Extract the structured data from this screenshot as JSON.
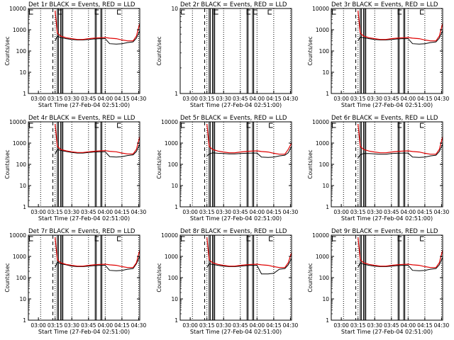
{
  "figure": {
    "xlabel": "Start Time (27-Feb-04 02:51:00)",
    "ylabel": "Counts/sec",
    "x_tick_labels": [
      "03:00",
      "03:15",
      "03:30",
      "03:45",
      "04:00",
      "04:15",
      "04:30"
    ],
    "y_tick_labels": [
      "1",
      "10",
      "100",
      "1000",
      "10000"
    ]
  },
  "colors": {
    "events": "#000000",
    "lld": "#e00000",
    "axes": "#000000",
    "background": "#ffffff"
  },
  "chart_data": [
    {
      "type": "line",
      "title": "Det 1r BLACK = Events, RED = LLD",
      "xlim": [
        "02:51",
        "04:31"
      ],
      "ylim": [
        1,
        10000
      ],
      "y_scale": "log",
      "x": [
        "03:15",
        "03:17",
        "03:20",
        "03:25",
        "03:30",
        "03:35",
        "03:40",
        "03:45",
        "03:50",
        "03:55",
        "04:00",
        "04:04",
        "04:10",
        "04:15",
        "04:20",
        "04:25",
        "04:28",
        "04:31"
      ],
      "series": [
        {
          "name": "Events",
          "color": "#000000",
          "values": [
            300,
            500,
            430,
            380,
            350,
            330,
            330,
            350,
            370,
            380,
            380,
            220,
            210,
            220,
            250,
            270,
            400,
            900
          ]
        },
        {
          "name": "LLD",
          "color": "#e00000",
          "values": [
            8000,
            700,
            500,
            420,
            380,
            350,
            350,
            380,
            400,
            420,
            430,
            400,
            380,
            330,
            300,
            300,
            500,
            2000
          ]
        }
      ],
      "vlines_dashed": [
        "03:13"
      ],
      "vlines_dotted": [
        "03:02",
        "03:15",
        "03:30",
        "03:45",
        "04:00",
        "04:15",
        "04:30"
      ],
      "vlines_solid": [
        "03:17",
        "03:18",
        "03:20",
        "03:21",
        "03:22",
        "03:51",
        "03:52",
        "03:56",
        "03:57"
      ],
      "markers": [
        "02:52",
        "03:18",
        "03:51",
        "04:11"
      ]
    },
    {
      "type": "line",
      "title": "Det 2r BLACK = Events, RED = LLD",
      "xlim": [
        "02:51",
        "04:31"
      ],
      "ylim": [
        1,
        10
      ],
      "y_scale": "log",
      "x": [],
      "series": [],
      "vlines_dashed": [
        "03:13"
      ],
      "vlines_dotted": [
        "03:02",
        "03:15",
        "03:30",
        "03:45",
        "04:00",
        "04:15",
        "04:30"
      ],
      "vlines_solid": [
        "03:17",
        "03:18",
        "03:20",
        "03:21",
        "03:22",
        "03:51",
        "03:52",
        "03:56",
        "03:57"
      ],
      "markers": [
        "02:52",
        "03:21",
        "03:22",
        "03:51",
        "03:57",
        "04:10"
      ]
    },
    {
      "type": "line",
      "title": "Det 3r BLACK = Events, RED = LLD",
      "xlim": [
        "02:51",
        "04:31"
      ],
      "ylim": [
        1,
        10000
      ],
      "y_scale": "log",
      "x": [
        "03:15",
        "03:17",
        "03:20",
        "03:25",
        "03:30",
        "03:35",
        "03:40",
        "03:45",
        "03:50",
        "03:55",
        "04:00",
        "04:04",
        "04:10",
        "04:15",
        "04:20",
        "04:25",
        "04:28",
        "04:31"
      ],
      "series": [
        {
          "name": "Events",
          "color": "#000000",
          "values": [
            300,
            450,
            420,
            380,
            350,
            330,
            330,
            350,
            370,
            380,
            380,
            220,
            210,
            220,
            250,
            270,
            400,
            900
          ]
        },
        {
          "name": "LLD",
          "color": "#e00000",
          "values": [
            8000,
            700,
            500,
            420,
            380,
            350,
            350,
            380,
            400,
            420,
            430,
            400,
            380,
            330,
            300,
            300,
            500,
            2000
          ]
        }
      ],
      "vlines_dashed": [
        "03:13"
      ],
      "vlines_dotted": [
        "03:02",
        "03:15",
        "03:30",
        "03:45",
        "04:00",
        "04:15",
        "04:30"
      ],
      "vlines_solid": [
        "03:17",
        "03:18",
        "03:20",
        "03:21",
        "03:22",
        "03:51",
        "03:52",
        "03:56",
        "03:57"
      ],
      "markers": [
        "02:52",
        "03:51",
        "04:11"
      ]
    },
    {
      "type": "line",
      "title": "Det 4r BLACK = Events, RED = LLD",
      "xlim": [
        "02:51",
        "04:31"
      ],
      "ylim": [
        1,
        10000
      ],
      "y_scale": "log",
      "x": [
        "03:15",
        "03:17",
        "03:20",
        "03:25",
        "03:30",
        "03:35",
        "03:40",
        "03:45",
        "03:50",
        "03:55",
        "04:00",
        "04:04",
        "04:10",
        "04:15",
        "04:20",
        "04:25",
        "04:28",
        "04:31"
      ],
      "series": [
        {
          "name": "Events",
          "color": "#000000",
          "values": [
            300,
            500,
            450,
            400,
            360,
            340,
            340,
            360,
            380,
            390,
            390,
            230,
            220,
            230,
            260,
            280,
            400,
            900
          ]
        },
        {
          "name": "LLD",
          "color": "#e00000",
          "values": [
            8000,
            700,
            500,
            430,
            390,
            360,
            360,
            390,
            410,
            430,
            440,
            410,
            390,
            340,
            310,
            310,
            500,
            2000
          ]
        }
      ],
      "vlines_dashed": [
        "03:13"
      ],
      "vlines_dotted": [
        "03:02",
        "03:15",
        "03:30",
        "03:45",
        "04:00",
        "04:15",
        "04:30"
      ],
      "vlines_solid": [
        "03:17",
        "03:18",
        "03:20",
        "03:21",
        "03:22",
        "03:51",
        "03:52",
        "03:56",
        "03:57"
      ],
      "markers": [
        "02:52",
        "03:51",
        "04:11"
      ]
    },
    {
      "type": "line",
      "title": "Det 5r BLACK = Events, RED = LLD",
      "xlim": [
        "02:51",
        "04:31"
      ],
      "ylim": [
        1,
        10000
      ],
      "y_scale": "log",
      "x": [
        "03:15",
        "03:17",
        "03:20",
        "03:25",
        "03:30",
        "03:35",
        "03:40",
        "03:45",
        "03:50",
        "03:55",
        "04:00",
        "04:04",
        "04:10",
        "04:15",
        "04:20",
        "04:25",
        "04:28",
        "04:31"
      ],
      "series": [
        {
          "name": "Events",
          "color": "#000000",
          "values": [
            250,
            300,
            350,
            330,
            320,
            310,
            310,
            320,
            330,
            340,
            340,
            220,
            210,
            220,
            250,
            270,
            350,
            700
          ]
        },
        {
          "name": "LLD",
          "color": "#e00000",
          "values": [
            8000,
            700,
            500,
            420,
            380,
            350,
            350,
            380,
            400,
            420,
            430,
            400,
            380,
            330,
            300,
            300,
            500,
            1000
          ]
        }
      ],
      "vlines_dashed": [
        "03:13"
      ],
      "vlines_dotted": [
        "03:02",
        "03:15",
        "03:30",
        "03:45",
        "04:00",
        "04:15",
        "04:30"
      ],
      "vlines_solid": [
        "03:17",
        "03:18",
        "03:20",
        "03:21",
        "03:22",
        "03:51",
        "03:52",
        "03:56",
        "03:57"
      ],
      "markers": [
        "02:52",
        "03:51",
        "04:11"
      ]
    },
    {
      "type": "line",
      "title": "Det 6r BLACK = Events, RED = LLD",
      "xlim": [
        "02:51",
        "04:31"
      ],
      "ylim": [
        1,
        10000
      ],
      "y_scale": "log",
      "x": [
        "03:15",
        "03:17",
        "03:20",
        "03:25",
        "03:30",
        "03:35",
        "03:40",
        "03:45",
        "03:50",
        "03:55",
        "04:00",
        "04:04",
        "04:10",
        "04:15",
        "04:20",
        "04:25",
        "04:28",
        "04:31"
      ],
      "series": [
        {
          "name": "Events",
          "color": "#000000",
          "values": [
            200,
            280,
            320,
            320,
            310,
            300,
            300,
            320,
            330,
            340,
            340,
            220,
            210,
            220,
            250,
            270,
            400,
            900
          ]
        },
        {
          "name": "LLD",
          "color": "#e00000",
          "values": [
            8000,
            700,
            500,
            420,
            380,
            350,
            350,
            380,
            400,
            420,
            430,
            400,
            380,
            330,
            300,
            300,
            500,
            2000
          ]
        }
      ],
      "vlines_dashed": [
        "03:13"
      ],
      "vlines_dotted": [
        "03:02",
        "03:15",
        "03:30",
        "03:45",
        "04:00",
        "04:15",
        "04:30"
      ],
      "vlines_solid": [
        "03:17",
        "03:18",
        "03:20",
        "03:21",
        "03:22",
        "03:51",
        "03:52",
        "03:56",
        "03:57"
      ],
      "markers": [
        "02:52",
        "03:51",
        "04:11"
      ]
    },
    {
      "type": "line",
      "title": "Det 7r BLACK = Events, RED = LLD",
      "xlim": [
        "02:51",
        "04:31"
      ],
      "ylim": [
        1,
        10000
      ],
      "y_scale": "log",
      "x": [
        "03:15",
        "03:17",
        "03:20",
        "03:25",
        "03:30",
        "03:35",
        "03:40",
        "03:45",
        "03:50",
        "03:55",
        "04:00",
        "04:04",
        "04:10",
        "04:15",
        "04:20",
        "04:25",
        "04:28",
        "04:31"
      ],
      "series": [
        {
          "name": "Events",
          "color": "#000000",
          "values": [
            300,
            550,
            450,
            400,
            350,
            330,
            330,
            350,
            370,
            380,
            380,
            220,
            210,
            220,
            250,
            270,
            450,
            1000
          ]
        },
        {
          "name": "LLD",
          "color": "#e00000",
          "values": [
            8000,
            700,
            500,
            420,
            380,
            350,
            350,
            380,
            400,
            420,
            430,
            400,
            380,
            330,
            300,
            300,
            500,
            2000
          ]
        }
      ],
      "vlines_dashed": [
        "03:13"
      ],
      "vlines_dotted": [
        "03:02",
        "03:15",
        "03:30",
        "03:45",
        "04:00",
        "04:15",
        "04:30"
      ],
      "vlines_solid": [
        "03:17",
        "03:18",
        "03:20",
        "03:21",
        "03:22",
        "03:51",
        "03:52",
        "03:56",
        "03:57"
      ],
      "markers": [
        "02:52",
        "03:51",
        "04:11"
      ]
    },
    {
      "type": "line",
      "title": "Det 8r BLACK = Events, RED = LLD",
      "xlim": [
        "02:51",
        "04:31"
      ],
      "ylim": [
        1,
        10000
      ],
      "y_scale": "log",
      "x": [
        "03:15",
        "03:17",
        "03:20",
        "03:25",
        "03:30",
        "03:35",
        "03:40",
        "03:45",
        "03:50",
        "03:55",
        "04:00",
        "04:04",
        "04:10",
        "04:15",
        "04:20",
        "04:25",
        "04:28",
        "04:31"
      ],
      "series": [
        {
          "name": "Events",
          "color": "#000000",
          "values": [
            300,
            450,
            420,
            380,
            350,
            330,
            330,
            350,
            370,
            380,
            380,
            150,
            150,
            160,
            250,
            270,
            400,
            800
          ]
        },
        {
          "name": "LLD",
          "color": "#e00000",
          "values": [
            8000,
            700,
            500,
            420,
            380,
            350,
            350,
            380,
            400,
            420,
            430,
            400,
            380,
            330,
            300,
            300,
            500,
            1500
          ]
        }
      ],
      "vlines_dashed": [
        "03:13"
      ],
      "vlines_dotted": [
        "03:02",
        "03:15",
        "03:30",
        "03:45",
        "04:00",
        "04:15",
        "04:30"
      ],
      "vlines_solid": [
        "03:17",
        "03:18",
        "03:20",
        "03:21",
        "03:22",
        "03:51",
        "03:52",
        "03:56",
        "03:57"
      ],
      "markers": [
        "02:52",
        "03:51",
        "04:11"
      ]
    },
    {
      "type": "line",
      "title": "Det 9r BLACK = Events, RED = LLD",
      "xlim": [
        "02:51",
        "04:31"
      ],
      "ylim": [
        1,
        10000
      ],
      "y_scale": "log",
      "x": [
        "03:15",
        "03:17",
        "03:20",
        "03:25",
        "03:30",
        "03:35",
        "03:40",
        "03:45",
        "03:50",
        "03:55",
        "04:00",
        "04:04",
        "04:10",
        "04:15",
        "04:20",
        "04:25",
        "04:28",
        "04:31"
      ],
      "series": [
        {
          "name": "Events",
          "color": "#000000",
          "values": [
            300,
            500,
            430,
            380,
            350,
            330,
            330,
            350,
            370,
            380,
            380,
            220,
            210,
            220,
            250,
            270,
            400,
            900
          ]
        },
        {
          "name": "LLD",
          "color": "#e00000",
          "values": [
            8000,
            700,
            500,
            420,
            380,
            350,
            350,
            380,
            400,
            420,
            430,
            400,
            380,
            330,
            300,
            300,
            500,
            2000
          ]
        }
      ],
      "vlines_dashed": [
        "03:13"
      ],
      "vlines_dotted": [
        "03:02",
        "03:15",
        "03:30",
        "03:45",
        "04:00",
        "04:15",
        "04:30"
      ],
      "vlines_solid": [
        "03:17",
        "03:18",
        "03:20",
        "03:21",
        "03:22",
        "03:51",
        "03:52",
        "03:56",
        "03:57"
      ],
      "markers": [
        "02:52",
        "03:51",
        "04:11"
      ]
    }
  ]
}
